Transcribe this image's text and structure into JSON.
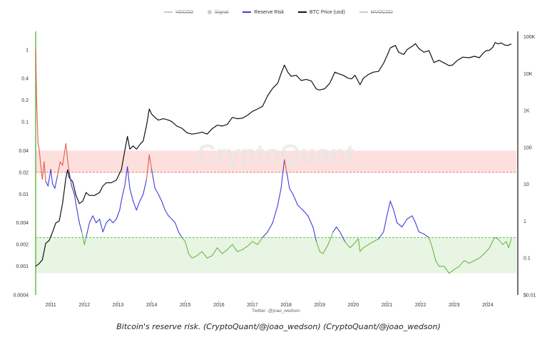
{
  "legend": [
    {
      "label": "VDCDD",
      "color": "#cccccc",
      "marker": "line",
      "enabled": false
    },
    {
      "label": "Signal",
      "color": "#cccccc",
      "marker": "dot",
      "enabled": false
    },
    {
      "label": "Reserve Risk",
      "color": "#3d3ddb",
      "marker": "line",
      "enabled": true
    },
    {
      "label": "BTC Price (usd)",
      "color": "#111111",
      "marker": "line",
      "enabled": true
    },
    {
      "label": "MVOCDD",
      "color": "#cccccc",
      "marker": "line",
      "enabled": false
    }
  ],
  "watermark": "CryptoQuant",
  "credit": "Twitter: @joao_wedson",
  "caption": "Bitcoin's reserve risk. (CryptoQuant/@joao_wedson) (CryptoQuant/@joao_wedson)",
  "colors": {
    "reserve_risk": "#3d3ddb",
    "reserve_risk_high": "#e35b4b",
    "reserve_risk_low": "#6ab84c",
    "price": "#111111",
    "high_band": "#fde0de",
    "high_line": "#e77b72",
    "low_band": "#e8f5e2",
    "low_line": "#5cc05c",
    "left_axis_line": "#6ab84c"
  },
  "chart_data": {
    "type": "line",
    "x_axis": {
      "ticks": [
        "2011",
        "2012",
        "2013",
        "2014",
        "2015",
        "2016",
        "2017",
        "2018",
        "2019",
        "2020",
        "2021",
        "2022",
        "2023",
        "2024"
      ],
      "range": [
        2010.55,
        2024.85
      ]
    },
    "y_left": {
      "scale": "log",
      "ticks": [
        "1",
        "0.4",
        "0.2",
        "0.1",
        "0.04",
        "0.02",
        "0.01",
        "0.004",
        "0.002",
        "0.001",
        "0.0004"
      ],
      "range": [
        0.0004,
        1.8
      ]
    },
    "y_right": {
      "scale": "log",
      "ticks": [
        "100K",
        "10K",
        "1K",
        "100",
        "10",
        "1",
        "0.1",
        "$0.01"
      ],
      "range": [
        0.01,
        140000
      ]
    },
    "bands": [
      {
        "name": "high",
        "y_from": 0.02,
        "y_to": 0.04
      },
      {
        "name": "low",
        "y_from": 0.0008,
        "y_to": 0.0025
      }
    ],
    "series": [
      {
        "name": "Reserve Risk",
        "axis": "left",
        "points": [
          [
            2010.55,
            1.0
          ],
          [
            2010.58,
            0.2
          ],
          [
            2010.62,
            0.05
          ],
          [
            2010.66,
            0.04
          ],
          [
            2010.7,
            0.025
          ],
          [
            2010.75,
            0.016
          ],
          [
            2010.8,
            0.028
          ],
          [
            2010.85,
            0.015
          ],
          [
            2010.92,
            0.013
          ],
          [
            2011.0,
            0.022
          ],
          [
            2011.05,
            0.014
          ],
          [
            2011.12,
            0.012
          ],
          [
            2011.2,
            0.018
          ],
          [
            2011.28,
            0.028
          ],
          [
            2011.35,
            0.025
          ],
          [
            2011.45,
            0.05
          ],
          [
            2011.5,
            0.03
          ],
          [
            2011.55,
            0.02
          ],
          [
            2011.62,
            0.013
          ],
          [
            2011.7,
            0.01
          ],
          [
            2011.78,
            0.006
          ],
          [
            2011.85,
            0.004
          ],
          [
            2011.92,
            0.003
          ],
          [
            2012.0,
            0.002
          ],
          [
            2012.05,
            0.0025
          ],
          [
            2012.15,
            0.004
          ],
          [
            2012.25,
            0.005
          ],
          [
            2012.35,
            0.004
          ],
          [
            2012.45,
            0.0045
          ],
          [
            2012.55,
            0.003
          ],
          [
            2012.65,
            0.004
          ],
          [
            2012.75,
            0.0045
          ],
          [
            2012.85,
            0.004
          ],
          [
            2012.95,
            0.0045
          ],
          [
            2013.05,
            0.006
          ],
          [
            2013.12,
            0.009
          ],
          [
            2013.2,
            0.013
          ],
          [
            2013.28,
            0.024
          ],
          [
            2013.35,
            0.012
          ],
          [
            2013.45,
            0.008
          ],
          [
            2013.55,
            0.006
          ],
          [
            2013.65,
            0.008
          ],
          [
            2013.75,
            0.01
          ],
          [
            2013.85,
            0.016
          ],
          [
            2013.93,
            0.035
          ],
          [
            2014.0,
            0.022
          ],
          [
            2014.1,
            0.012
          ],
          [
            2014.2,
            0.01
          ],
          [
            2014.3,
            0.008
          ],
          [
            2014.4,
            0.006
          ],
          [
            2014.5,
            0.005
          ],
          [
            2014.6,
            0.0045
          ],
          [
            2014.7,
            0.004
          ],
          [
            2014.8,
            0.003
          ],
          [
            2014.9,
            0.0025
          ],
          [
            2015.0,
            0.0022
          ],
          [
            2015.1,
            0.0015
          ],
          [
            2015.2,
            0.0013
          ],
          [
            2015.35,
            0.0014
          ],
          [
            2015.5,
            0.0016
          ],
          [
            2015.65,
            0.0013
          ],
          [
            2015.8,
            0.0014
          ],
          [
            2015.95,
            0.0018
          ],
          [
            2016.1,
            0.0015
          ],
          [
            2016.25,
            0.0017
          ],
          [
            2016.4,
            0.002
          ],
          [
            2016.55,
            0.0016
          ],
          [
            2016.7,
            0.0017
          ],
          [
            2016.85,
            0.0019
          ],
          [
            2017.0,
            0.0022
          ],
          [
            2017.15,
            0.002
          ],
          [
            2017.3,
            0.0025
          ],
          [
            2017.45,
            0.003
          ],
          [
            2017.6,
            0.004
          ],
          [
            2017.75,
            0.007
          ],
          [
            2017.85,
            0.012
          ],
          [
            2017.95,
            0.03
          ],
          [
            2018.02,
            0.02
          ],
          [
            2018.1,
            0.012
          ],
          [
            2018.2,
            0.01
          ],
          [
            2018.35,
            0.007
          ],
          [
            2018.5,
            0.006
          ],
          [
            2018.65,
            0.005
          ],
          [
            2018.8,
            0.0035
          ],
          [
            2018.9,
            0.0022
          ],
          [
            2019.0,
            0.0016
          ],
          [
            2019.1,
            0.0015
          ],
          [
            2019.25,
            0.002
          ],
          [
            2019.4,
            0.003
          ],
          [
            2019.5,
            0.0035
          ],
          [
            2019.6,
            0.003
          ],
          [
            2019.75,
            0.0022
          ],
          [
            2019.9,
            0.0018
          ],
          [
            2020.0,
            0.002
          ],
          [
            2020.15,
            0.0024
          ],
          [
            2020.2,
            0.0016
          ],
          [
            2020.3,
            0.0018
          ],
          [
            2020.45,
            0.002
          ],
          [
            2020.6,
            0.0022
          ],
          [
            2020.75,
            0.0024
          ],
          [
            2020.9,
            0.003
          ],
          [
            2021.0,
            0.005
          ],
          [
            2021.1,
            0.008
          ],
          [
            2021.2,
            0.006
          ],
          [
            2021.3,
            0.004
          ],
          [
            2021.45,
            0.0035
          ],
          [
            2021.6,
            0.0045
          ],
          [
            2021.75,
            0.005
          ],
          [
            2021.85,
            0.004
          ],
          [
            2021.95,
            0.003
          ],
          [
            2022.1,
            0.0028
          ],
          [
            2022.25,
            0.0025
          ],
          [
            2022.35,
            0.0018
          ],
          [
            2022.45,
            0.0012
          ],
          [
            2022.55,
            0.001
          ],
          [
            2022.7,
            0.001
          ],
          [
            2022.85,
            0.0008
          ],
          [
            2023.0,
            0.0009
          ],
          [
            2023.15,
            0.001
          ],
          [
            2023.3,
            0.0012
          ],
          [
            2023.45,
            0.0011
          ],
          [
            2023.6,
            0.0012
          ],
          [
            2023.75,
            0.0013
          ],
          [
            2023.9,
            0.0015
          ],
          [
            2024.05,
            0.0018
          ],
          [
            2024.2,
            0.0025
          ],
          [
            2024.3,
            0.0024
          ],
          [
            2024.45,
            0.002
          ],
          [
            2024.55,
            0.0022
          ],
          [
            2024.62,
            0.0018
          ],
          [
            2024.7,
            0.0024
          ]
        ]
      },
      {
        "name": "BTC Price (usd)",
        "axis": "right",
        "points": [
          [
            2010.55,
            0.06
          ],
          [
            2010.65,
            0.07
          ],
          [
            2010.75,
            0.09
          ],
          [
            2010.85,
            0.25
          ],
          [
            2010.95,
            0.3
          ],
          [
            2011.05,
            0.5
          ],
          [
            2011.15,
            0.9
          ],
          [
            2011.25,
            1.0
          ],
          [
            2011.35,
            3
          ],
          [
            2011.45,
            15
          ],
          [
            2011.5,
            25
          ],
          [
            2011.55,
            15
          ],
          [
            2011.65,
            12
          ],
          [
            2011.75,
            5
          ],
          [
            2011.85,
            3
          ],
          [
            2011.95,
            3.5
          ],
          [
            2012.05,
            6
          ],
          [
            2012.15,
            5
          ],
          [
            2012.3,
            5
          ],
          [
            2012.45,
            6
          ],
          [
            2012.55,
            9
          ],
          [
            2012.65,
            11
          ],
          [
            2012.8,
            11
          ],
          [
            2012.95,
            13
          ],
          [
            2013.1,
            25
          ],
          [
            2013.2,
            80
          ],
          [
            2013.28,
            200
          ],
          [
            2013.35,
            90
          ],
          [
            2013.45,
            110
          ],
          [
            2013.55,
            90
          ],
          [
            2013.65,
            120
          ],
          [
            2013.75,
            150
          ],
          [
            2013.85,
            400
          ],
          [
            2013.93,
            1100
          ],
          [
            2014.0,
            800
          ],
          [
            2014.1,
            650
          ],
          [
            2014.2,
            550
          ],
          [
            2014.35,
            600
          ],
          [
            2014.5,
            550
          ],
          [
            2014.6,
            500
          ],
          [
            2014.75,
            380
          ],
          [
            2014.9,
            330
          ],
          [
            2015.05,
            250
          ],
          [
            2015.2,
            230
          ],
          [
            2015.35,
            240
          ],
          [
            2015.5,
            260
          ],
          [
            2015.65,
            230
          ],
          [
            2015.8,
            320
          ],
          [
            2015.95,
            400
          ],
          [
            2016.1,
            380
          ],
          [
            2016.25,
            420
          ],
          [
            2016.4,
            650
          ],
          [
            2016.55,
            600
          ],
          [
            2016.7,
            620
          ],
          [
            2016.85,
            740
          ],
          [
            2017.0,
            950
          ],
          [
            2017.15,
            1100
          ],
          [
            2017.3,
            1300
          ],
          [
            2017.45,
            2500
          ],
          [
            2017.6,
            4000
          ],
          [
            2017.75,
            5500
          ],
          [
            2017.85,
            10000
          ],
          [
            2017.95,
            17000
          ],
          [
            2018.05,
            11000
          ],
          [
            2018.15,
            8500
          ],
          [
            2018.3,
            9000
          ],
          [
            2018.45,
            6500
          ],
          [
            2018.6,
            7000
          ],
          [
            2018.75,
            6300
          ],
          [
            2018.9,
            3800
          ],
          [
            2019.0,
            3600
          ],
          [
            2019.15,
            3900
          ],
          [
            2019.3,
            5500
          ],
          [
            2019.45,
            11000
          ],
          [
            2019.55,
            10000
          ],
          [
            2019.7,
            9000
          ],
          [
            2019.85,
            7500
          ],
          [
            2019.95,
            7200
          ],
          [
            2020.05,
            9000
          ],
          [
            2020.2,
            5000
          ],
          [
            2020.3,
            7500
          ],
          [
            2020.45,
            9500
          ],
          [
            2020.6,
            11000
          ],
          [
            2020.75,
            11500
          ],
          [
            2020.9,
            19000
          ],
          [
            2021.0,
            30000
          ],
          [
            2021.1,
            50000
          ],
          [
            2021.25,
            58000
          ],
          [
            2021.35,
            38000
          ],
          [
            2021.5,
            33000
          ],
          [
            2021.6,
            45000
          ],
          [
            2021.75,
            55000
          ],
          [
            2021.85,
            65000
          ],
          [
            2021.95,
            48000
          ],
          [
            2022.1,
            38000
          ],
          [
            2022.25,
            42000
          ],
          [
            2022.4,
            20000
          ],
          [
            2022.55,
            23000
          ],
          [
            2022.7,
            19500
          ],
          [
            2022.85,
            16500
          ],
          [
            2022.95,
            17000
          ],
          [
            2023.1,
            23000
          ],
          [
            2023.25,
            28000
          ],
          [
            2023.45,
            27000
          ],
          [
            2023.6,
            29500
          ],
          [
            2023.75,
            27000
          ],
          [
            2023.85,
            35000
          ],
          [
            2023.95,
            42000
          ],
          [
            2024.05,
            43000
          ],
          [
            2024.15,
            52000
          ],
          [
            2024.22,
            70000
          ],
          [
            2024.3,
            64000
          ],
          [
            2024.4,
            68000
          ],
          [
            2024.5,
            60000
          ],
          [
            2024.6,
            58000
          ],
          [
            2024.7,
            64000
          ]
        ]
      }
    ]
  }
}
